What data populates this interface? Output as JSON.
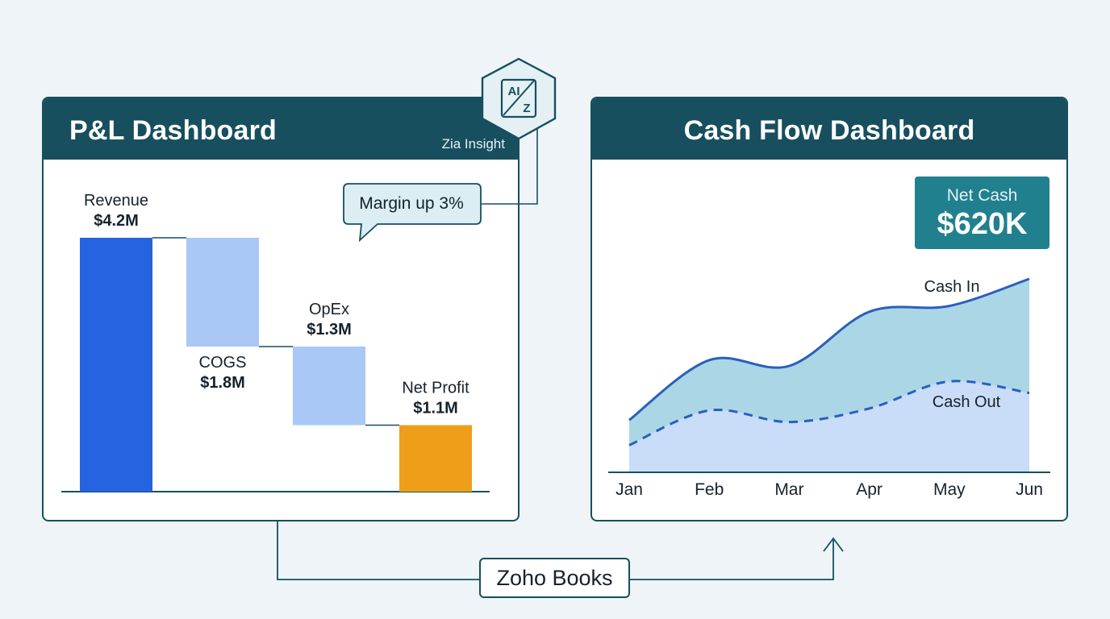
{
  "pl_dashboard": {
    "title": "P&L Dashboard",
    "zia_label": "Zia Insight",
    "callout": "Margin up 3%",
    "ai_badge": {
      "line1": "AI",
      "line2": "Z",
      "icon": "ai-hexagon-icon"
    }
  },
  "cashflow_dashboard": {
    "title": "Cash Flow Dashboard",
    "net_cash": {
      "label": "Net Cash",
      "value": "$620K"
    }
  },
  "connector_label": "Zoho Books",
  "colors": {
    "header": "#174f5f",
    "revenue": "#2563e0",
    "expense": "#a9c8f5",
    "net_profit": "#ee9e18",
    "cash_in_line": "#2a5fbd",
    "cash_in_fill": "#abd6e6",
    "cash_out_fill": "#c9dcf8",
    "net_cash_badge": "#21808e"
  },
  "chart_data": [
    {
      "type": "bar",
      "variant": "waterfall",
      "categories": [
        "Revenue",
        "COGS",
        "OpEx",
        "Net Profit"
      ],
      "value_labels": [
        "$4.2M",
        "$1.8M",
        "$1.3M",
        "$1.1M"
      ],
      "values": [
        4.2,
        -1.8,
        -1.3,
        1.1
      ],
      "kinds": [
        "total",
        "decrease",
        "decrease",
        "total"
      ],
      "ylim": [
        0,
        4.2
      ]
    },
    {
      "type": "area",
      "categories": [
        "Jan",
        "Feb",
        "Mar",
        "Apr",
        "May",
        "Jun"
      ],
      "series": [
        {
          "name": "Cash In",
          "style": "solid",
          "values": [
            0.27,
            0.58,
            0.55,
            0.83,
            0.86,
            1.0
          ]
        },
        {
          "name": "Cash Out",
          "style": "dashed",
          "values": [
            0.14,
            0.32,
            0.26,
            0.33,
            0.47,
            0.41
          ]
        }
      ],
      "ylim": [
        0,
        1.0
      ]
    }
  ]
}
